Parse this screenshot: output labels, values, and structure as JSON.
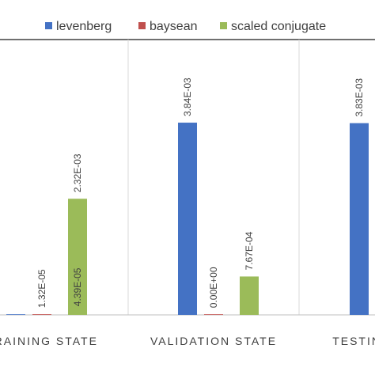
{
  "chart_data": {
    "type": "bar",
    "categories": [
      "TRAINING STATE",
      "VALIDATION STATE",
      "TESTING STATE"
    ],
    "series": [
      {
        "name": "levenberg",
        "color": "#4472C4",
        "values": [
          0.0,
          0.00384,
          0.00383
        ],
        "labels": [
          "",
          "3.84E-03",
          "3.83E-03"
        ]
      },
      {
        "name": "baysean",
        "color": "#C0504D",
        "values": [
          1.32e-05,
          0.0,
          null
        ],
        "labels": [
          "1.32E-05",
          "0.00E+00",
          ""
        ]
      },
      {
        "name": "scaled conjugate",
        "color": "#9BBB59",
        "values": [
          4.39e-05,
          0.000767,
          null
        ],
        "labels": [
          "4.39E-05",
          "7.67E-04",
          ""
        ]
      }
    ],
    "extra_labels": [
      {
        "category": 0,
        "series": 2,
        "text": "2.32E-03",
        "value": 0.00232
      }
    ],
    "title": "",
    "xlabel": "",
    "ylabel": "",
    "ylim": [
      0,
      0.0055
    ],
    "grid": "vertical separators",
    "legend_position": "top"
  }
}
